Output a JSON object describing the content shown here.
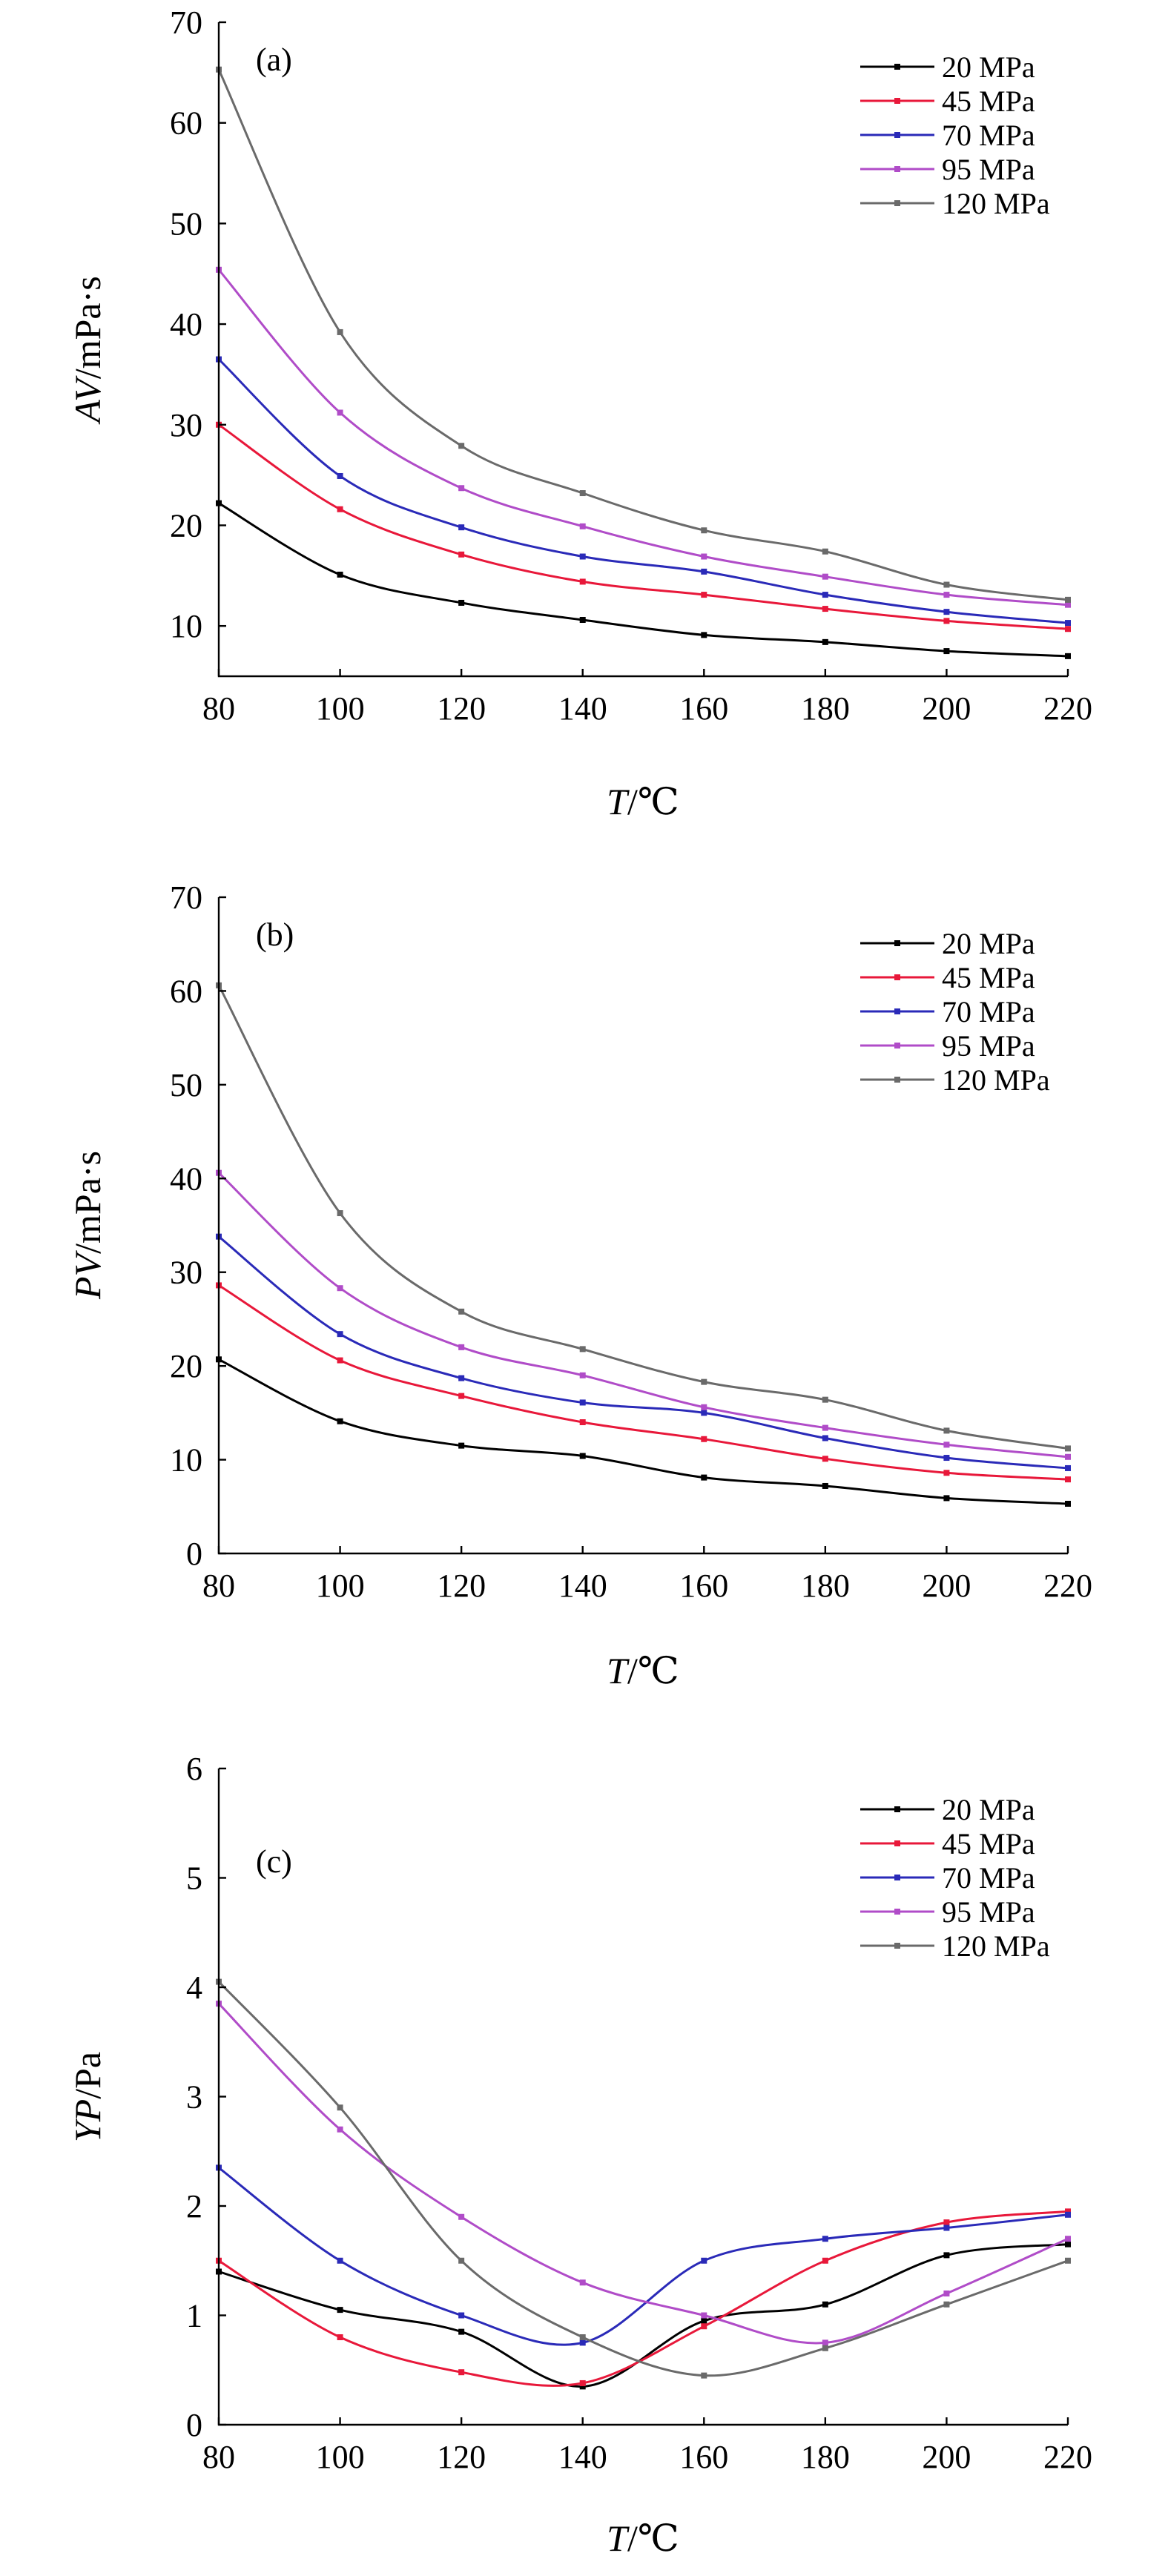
{
  "chart_data": [
    {
      "type": "line",
      "panel_label": "(a)",
      "xlabel": "T/℃",
      "xlabel_parts": [
        "T",
        "/℃"
      ],
      "ylabel": "AV/mPa·s",
      "ylabel_parts": [
        "AV",
        "/mPa·s"
      ],
      "x": [
        80,
        100,
        120,
        140,
        160,
        180,
        200,
        220
      ],
      "xlim": [
        80,
        220
      ],
      "xticks": [
        80,
        100,
        120,
        140,
        160,
        180,
        200,
        220
      ],
      "ylim": [
        5,
        70
      ],
      "yticks": [
        10,
        20,
        30,
        40,
        50,
        60,
        70
      ],
      "legend_position": "top-right",
      "grid": false,
      "series": [
        {
          "name": "20 MPa",
          "color": "#000000",
          "values": [
            22.2,
            15.1,
            12.3,
            10.6,
            9.1,
            8.4,
            7.5,
            7.0
          ]
        },
        {
          "name": "45 MPa",
          "color": "#e8183a",
          "values": [
            30.0,
            21.6,
            17.1,
            14.4,
            13.1,
            11.7,
            10.5,
            9.7
          ]
        },
        {
          "name": "70 MPa",
          "color": "#2a2ab8",
          "values": [
            36.5,
            24.9,
            19.8,
            16.9,
            15.4,
            13.1,
            11.4,
            10.3
          ]
        },
        {
          "name": "95 MPa",
          "color": "#b04cc8",
          "values": [
            45.4,
            31.2,
            23.7,
            19.9,
            16.9,
            14.9,
            13.1,
            12.1
          ]
        },
        {
          "name": "120 MPa",
          "color": "#6a6a6a",
          "values": [
            65.3,
            39.2,
            27.9,
            23.2,
            19.5,
            17.4,
            14.1,
            12.6
          ]
        }
      ]
    },
    {
      "type": "line",
      "panel_label": "(b)",
      "xlabel": "T/℃",
      "xlabel_parts": [
        "T",
        "/℃"
      ],
      "ylabel": "PV/mPa·s",
      "ylabel_parts": [
        "PV",
        "/mPa·s"
      ],
      "x": [
        80,
        100,
        120,
        140,
        160,
        180,
        200,
        220
      ],
      "xlim": [
        80,
        220
      ],
      "xticks": [
        80,
        100,
        120,
        140,
        160,
        180,
        200,
        220
      ],
      "ylim": [
        0,
        70
      ],
      "yticks": [
        0,
        10,
        20,
        30,
        40,
        50,
        60,
        70
      ],
      "legend_position": "top-right",
      "grid": false,
      "series": [
        {
          "name": "20 MPa",
          "color": "#000000",
          "values": [
            20.7,
            14.1,
            11.5,
            10.4,
            8.1,
            7.2,
            5.9,
            5.3
          ]
        },
        {
          "name": "45 MPa",
          "color": "#e8183a",
          "values": [
            28.6,
            20.6,
            16.8,
            14.0,
            12.2,
            10.1,
            8.6,
            7.9
          ]
        },
        {
          "name": "70 MPa",
          "color": "#2a2ab8",
          "values": [
            33.8,
            23.4,
            18.7,
            16.1,
            15.0,
            12.3,
            10.2,
            9.1
          ]
        },
        {
          "name": "95 MPa",
          "color": "#b04cc8",
          "values": [
            40.6,
            28.3,
            22.0,
            19.0,
            15.6,
            13.4,
            11.6,
            10.3
          ]
        },
        {
          "name": "120 MPa",
          "color": "#6a6a6a",
          "values": [
            60.6,
            36.3,
            25.8,
            21.8,
            18.3,
            16.4,
            13.1,
            11.2
          ]
        }
      ]
    },
    {
      "type": "line",
      "panel_label": "(c)",
      "xlabel": "T/℃",
      "xlabel_parts": [
        "T",
        "/℃"
      ],
      "ylabel": "YP/Pa",
      "ylabel_parts": [
        "YP",
        "/Pa"
      ],
      "x": [
        80,
        100,
        120,
        140,
        160,
        180,
        200,
        220
      ],
      "xlim": [
        80,
        220
      ],
      "xticks": [
        80,
        100,
        120,
        140,
        160,
        180,
        200,
        220
      ],
      "ylim": [
        0,
        6
      ],
      "yticks": [
        0,
        1,
        2,
        3,
        4,
        5,
        6
      ],
      "legend_position": "top-right",
      "grid": false,
      "series": [
        {
          "name": "20 MPa",
          "color": "#000000",
          "values": [
            1.4,
            1.05,
            0.85,
            0.35,
            0.95,
            1.1,
            1.55,
            1.65
          ]
        },
        {
          "name": "45 MPa",
          "color": "#e8183a",
          "values": [
            1.5,
            0.8,
            0.48,
            0.38,
            0.9,
            1.5,
            1.85,
            1.95
          ]
        },
        {
          "name": "70 MPa",
          "color": "#2a2ab8",
          "values": [
            2.35,
            1.5,
            1.0,
            0.75,
            1.5,
            1.7,
            1.8,
            1.92
          ]
        },
        {
          "name": "95 MPa",
          "color": "#b04cc8",
          "values": [
            3.85,
            2.7,
            1.9,
            1.3,
            1.0,
            0.75,
            1.2,
            1.7
          ]
        },
        {
          "name": "120 MPa",
          "color": "#6a6a6a",
          "values": [
            4.05,
            2.9,
            1.5,
            0.8,
            0.45,
            0.7,
            1.1,
            1.5
          ]
        }
      ]
    }
  ]
}
